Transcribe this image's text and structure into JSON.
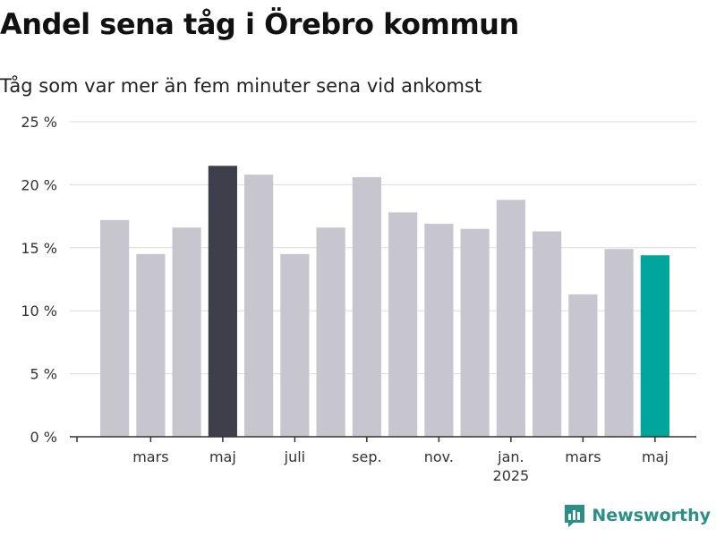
{
  "chart_data": {
    "type": "bar",
    "title": "Andel sena tåg i Örebro kommun",
    "subtitle": "Tåg som var mer än fem minuter sena vid ankomst",
    "ylim": [
      0,
      25
    ],
    "y_ticks": [
      0,
      5,
      10,
      15,
      20,
      25
    ],
    "y_tick_labels": [
      "0 %",
      "5 %",
      "10 %",
      "15 %",
      "20 %",
      "25 %"
    ],
    "x_tick_labels": [
      {
        "index": 1,
        "label": "mars"
      },
      {
        "index": 3,
        "label": "maj"
      },
      {
        "index": 5,
        "label": "juli"
      },
      {
        "index": 7,
        "label": "sep."
      },
      {
        "index": 9,
        "label": "nov."
      },
      {
        "index": 11,
        "label": "jan.",
        "sublabel": "2025"
      },
      {
        "index": 13,
        "label": "mars"
      },
      {
        "index": 15,
        "label": "maj"
      }
    ],
    "values": [
      17.2,
      14.5,
      16.6,
      21.5,
      20.8,
      14.5,
      16.6,
      20.6,
      17.8,
      16.9,
      16.5,
      18.8,
      16.3,
      11.3,
      14.9,
      14.4
    ],
    "highlight": {
      "3": "#3f3e4b",
      "15": "#00a59b"
    },
    "bar_color": "#c7c6ce",
    "grid": true,
    "grid_color": "#dcdcdc"
  },
  "brand": {
    "name": "Newsworthy",
    "icon": "newsworthy-logo-icon",
    "color": "#2a8f86"
  }
}
